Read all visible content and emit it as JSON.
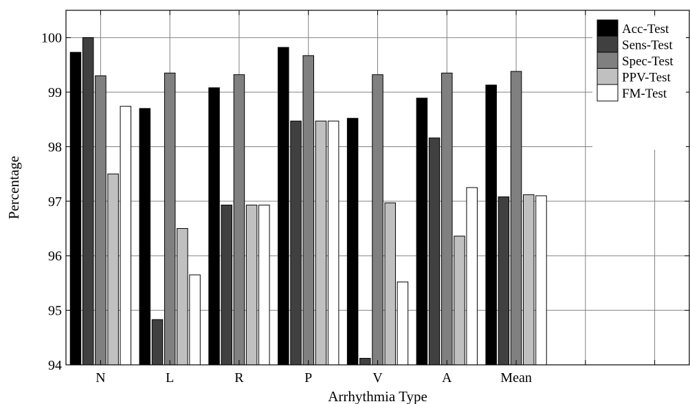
{
  "chart_data": {
    "type": "bar",
    "xlabel": "Arrhythmia Type",
    "ylabel": "Percentage",
    "ylim": [
      94,
      100.5
    ],
    "yticks": [
      94,
      95,
      96,
      97,
      98,
      99,
      100
    ],
    "categories": [
      "N",
      "L",
      "R",
      "P",
      "V",
      "A",
      "Mean"
    ],
    "x_slots": 9,
    "grid": true,
    "legend_position": "top-right",
    "series": [
      {
        "name": "Acc-Test",
        "color": "#000000",
        "values": [
          99.73,
          98.7,
          99.08,
          99.82,
          98.52,
          98.89,
          99.13
        ]
      },
      {
        "name": "Sens-Test",
        "color": "#404040",
        "values": [
          100.0,
          94.83,
          96.93,
          98.47,
          94.12,
          98.16,
          97.08
        ]
      },
      {
        "name": "Spec-Test",
        "color": "#808080",
        "values": [
          99.3,
          99.35,
          99.32,
          99.67,
          99.32,
          99.35,
          99.38
        ]
      },
      {
        "name": "PPV-Test",
        "color": "#c0c0c0",
        "values": [
          97.5,
          96.5,
          96.93,
          98.47,
          96.97,
          96.36,
          97.12
        ]
      },
      {
        "name": "FM-Test",
        "color": "#ffffff",
        "values": [
          98.74,
          95.65,
          96.93,
          98.47,
          95.52,
          97.25,
          97.1
        ]
      }
    ]
  }
}
